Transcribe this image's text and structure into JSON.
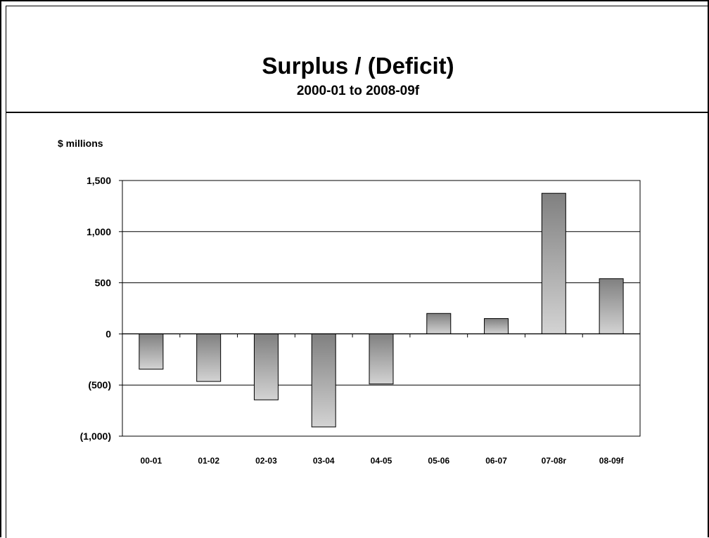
{
  "chart_data": {
    "type": "bar",
    "title": "Surplus / (Deficit)",
    "subtitle": "2000-01 to 2008-09f",
    "ylabel": "$ millions",
    "categories": [
      "00-01",
      "01-02",
      "02-03",
      "03-04",
      "04-05",
      "05-06",
      "06-07",
      "07-08r",
      "08-09f"
    ],
    "values": [
      -345,
      -465,
      -645,
      -910,
      -490,
      200,
      150,
      1375,
      540
    ],
    "ylim": [
      -1000,
      1500
    ],
    "yticks": [
      1500,
      1000,
      500,
      0,
      -500,
      -1000
    ],
    "ytick_labels": [
      "1,500",
      "1,000",
      "500",
      "0",
      "(500)",
      "(1,000)"
    ],
    "grid": true,
    "legend": "none"
  }
}
